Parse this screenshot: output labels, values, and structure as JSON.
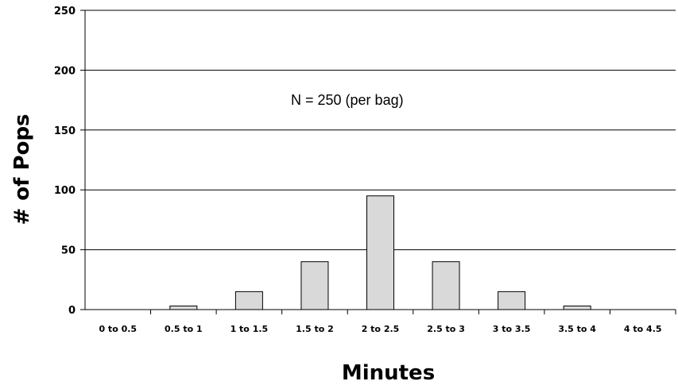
{
  "chart_data": {
    "type": "bar",
    "categories": [
      "0 to 0.5",
      "0.5 to 1",
      "1 to 1.5",
      "1.5 to 2",
      "2 to 2.5",
      "2.5 to 3",
      "3 to 3.5",
      "3.5 to 4",
      "4 to 4.5"
    ],
    "values": [
      0,
      3,
      15,
      40,
      95,
      40,
      15,
      3,
      0
    ],
    "xlabel": "Minutes",
    "ylabel": "# of Pops",
    "ylim": [
      0,
      250
    ],
    "yticks": [
      0,
      50,
      100,
      150,
      200,
      250
    ],
    "grid": true,
    "annotation": "N = 250 (per bag)",
    "bar_color": "#d9d9d9"
  }
}
